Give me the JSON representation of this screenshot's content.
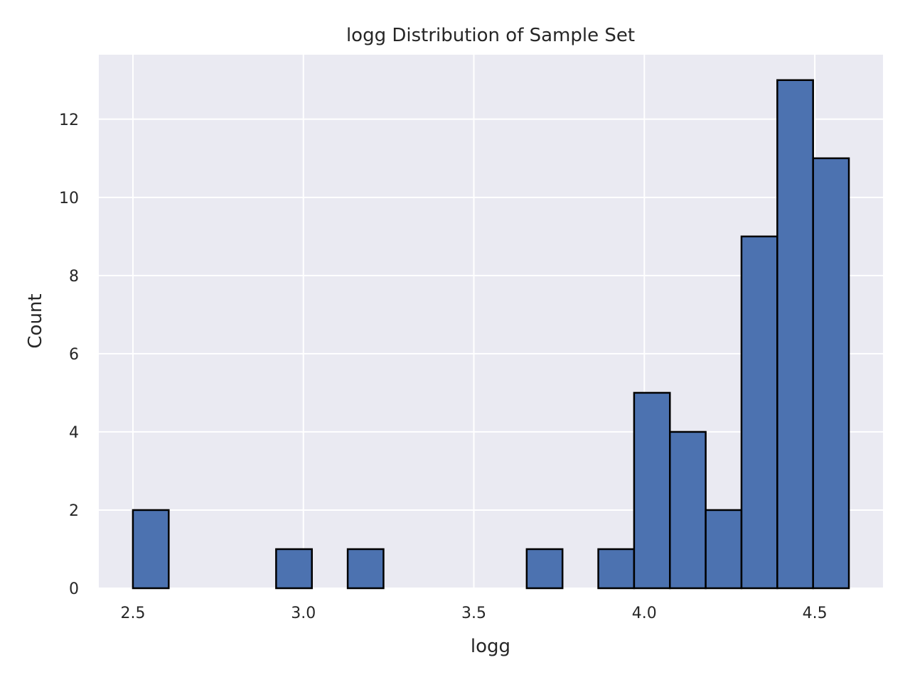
{
  "chart_data": {
    "type": "bar",
    "title": "logg Distribution of Sample Set",
    "xlabel": "logg",
    "ylabel": "Count",
    "xlim": [
      2.4,
      4.7
    ],
    "ylim": [
      0,
      13.65
    ],
    "xticks": [
      2.5,
      3.0,
      3.5,
      4.0,
      4.5
    ],
    "xtick_labels": [
      "2.5",
      "3.0",
      "3.5",
      "4.0",
      "4.5"
    ],
    "yticks": [
      0,
      2,
      4,
      6,
      8,
      10,
      12
    ],
    "ytick_labels": [
      "0",
      "2",
      "4",
      "6",
      "8",
      "10",
      "12"
    ],
    "grid": true,
    "bins": [
      {
        "x0": 2.5,
        "x1": 2.605,
        "count": 2
      },
      {
        "x0": 2.92,
        "x1": 3.025,
        "count": 1
      },
      {
        "x0": 3.13,
        "x1": 3.235,
        "count": 1
      },
      {
        "x0": 3.655,
        "x1": 3.76,
        "count": 1
      },
      {
        "x0": 3.865,
        "x1": 3.97,
        "count": 1
      },
      {
        "x0": 3.97,
        "x1": 4.075,
        "count": 5
      },
      {
        "x0": 4.075,
        "x1": 4.18,
        "count": 4
      },
      {
        "x0": 4.18,
        "x1": 4.285,
        "count": 2
      },
      {
        "x0": 4.285,
        "x1": 4.39,
        "count": 9
      },
      {
        "x0": 4.39,
        "x1": 4.495,
        "count": 13
      },
      {
        "x0": 4.495,
        "x1": 4.6,
        "count": 11
      }
    ],
    "colors": {
      "background": "#eaeaf2",
      "bar_fill": "#4c72b0",
      "bar_edge": "#000000",
      "grid": "#ffffff",
      "text": "#262626"
    }
  }
}
